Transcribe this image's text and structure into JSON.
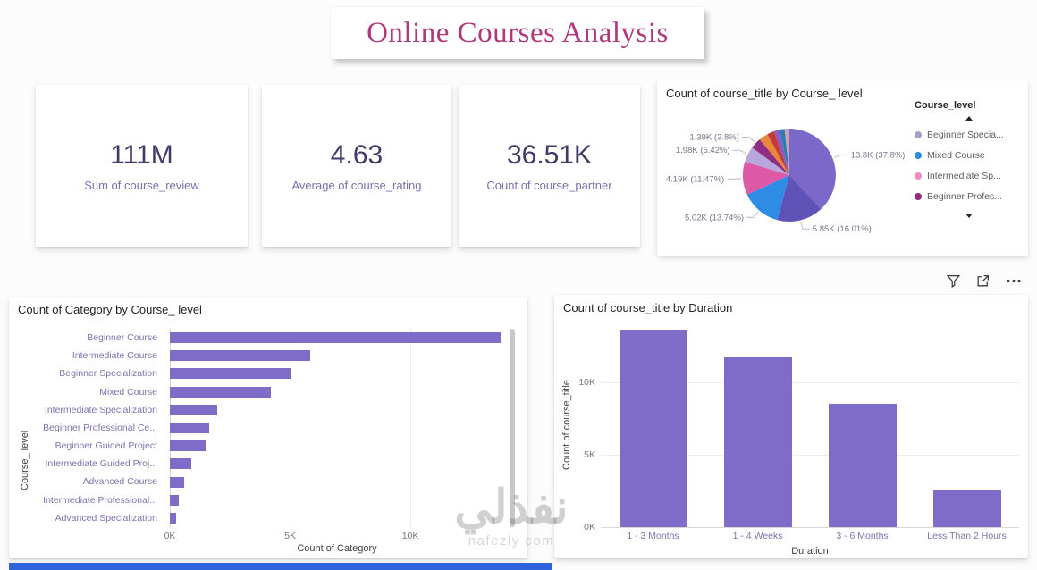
{
  "page_title": "Online Courses Analysis",
  "kpis": [
    {
      "value": "111M",
      "label": "Sum of course_review"
    },
    {
      "value": "4.63",
      "label": "Average of course_rating"
    },
    {
      "value": "36.51K",
      "label": "Count of course_partner"
    }
  ],
  "colors": {
    "accent_purple": "#7E6CC8",
    "title_magenta": "#B0397B",
    "kpi_value": "#3F3A68",
    "kpi_label": "#7B6FAE",
    "strip_blue": "#2F62DC"
  },
  "chart_data": [
    {
      "type": "pie",
      "title": "Count of course_title by Course_ level",
      "legend_title": "Course_level",
      "slices": [
        {
          "label": "13.8K (37.8%)",
          "value": 13800,
          "pct": 37.8,
          "color": "#7B68C9"
        },
        {
          "label": "5.85K (16.01%)",
          "value": 5850,
          "pct": 16.01,
          "color": "#6053B8"
        },
        {
          "label": "5.02K (13.74%)",
          "value": 5020,
          "pct": 13.74,
          "color": "#2E8CE4"
        },
        {
          "label": "4.19K (11.47%)",
          "value": 4190,
          "pct": 11.47,
          "color": "#DE59A5"
        },
        {
          "label": "1.98K (5.42%)",
          "value": 1980,
          "pct": 5.42,
          "color": "#B7A7DC"
        },
        {
          "label": "1.39K (3.8%)",
          "value": 1390,
          "pct": 3.8,
          "color": "#8F2D85"
        },
        {
          "label": "",
          "value": 1170,
          "pct": 3.2,
          "color": "#E8873C"
        },
        {
          "label": "",
          "value": 900,
          "pct": 2.46,
          "color": "#C23B3B"
        },
        {
          "label": "",
          "value": 700,
          "pct": 1.9,
          "color": "#8A5BC7"
        },
        {
          "label": "",
          "value": 650,
          "pct": 1.8,
          "color": "#2B7FAE"
        },
        {
          "label": "",
          "value": 580,
          "pct": 1.6,
          "color": "#C9A0B8"
        }
      ],
      "legend": [
        {
          "label": "Beginner Specia...",
          "color": "#A89FC8"
        },
        {
          "label": "Mixed Course",
          "color": "#2E8CE4"
        },
        {
          "label": "Intermediate Sp...",
          "color": "#F18BC5"
        },
        {
          "label": "Beginner Profes...",
          "color": "#8F2D85"
        }
      ],
      "legend_position": "right"
    },
    {
      "type": "bar",
      "title": "Count of Category by Course_ level",
      "xlabel": "Count of Category",
      "ylabel": "Course_ level",
      "bar_color": "#7E6CC8",
      "categories": [
        "Beginner Course",
        "Intermediate Course",
        "Beginner Specialization",
        "Mixed Course",
        "Intermediate Specialization",
        "Beginner Professional Ce...",
        "Beginner Guided Project",
        "Intermediate Guided Proj...",
        "Advanced Course",
        "Intermediate Professional...",
        "Advanced Specialization"
      ],
      "values": [
        13760,
        5850,
        5020,
        4190,
        1980,
        1620,
        1500,
        880,
        580,
        360,
        270
      ],
      "xlim": [
        0,
        13900
      ],
      "xticks": [
        {
          "label": "0K",
          "value": 0
        },
        {
          "label": "5K",
          "value": 5000
        },
        {
          "label": "10K",
          "value": 10000
        }
      ],
      "grid": true
    },
    {
      "type": "column",
      "title": "Count of course_title by Duration",
      "xlabel": "Duration",
      "ylabel": "Count of course_title",
      "bar_color": "#7E6CC8",
      "categories": [
        "1 - 3 Months",
        "1 - 4 Weeks",
        "3 - 6 Months",
        "Less Than 2 Hours"
      ],
      "values": [
        13600,
        11700,
        8500,
        2500
      ],
      "ylim": [
        0,
        14300
      ],
      "yticks": [
        {
          "label": "0K",
          "value": 0
        },
        {
          "label": "5K",
          "value": 5000
        },
        {
          "label": "10K",
          "value": 10000
        }
      ],
      "grid": true
    }
  ],
  "watermark": {
    "arabic": "نفذلي",
    "latin": "nafezly com"
  }
}
